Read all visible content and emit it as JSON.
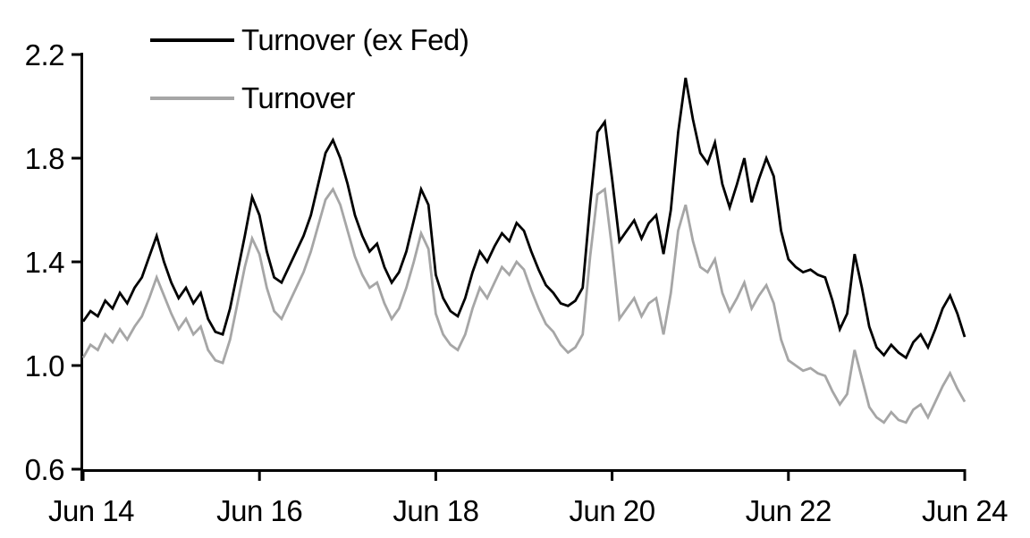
{
  "chart_data": {
    "type": "line",
    "title": "",
    "xlabel": "",
    "ylabel": "",
    "x_tick_labels": [
      "Jun 14",
      "Jun 16",
      "Jun 18",
      "Jun 20",
      "Jun 22",
      "Jun 24"
    ],
    "y_tick_labels": [
      "0.6",
      "1.0",
      "1.4",
      "1.8",
      "2.2"
    ],
    "y_tick_values": [
      0.6,
      1.0,
      1.4,
      1.8,
      2.2
    ],
    "ylim": [
      0.6,
      2.2
    ],
    "x_range": "monthly points from Jun 2014 to Jun 2024",
    "grid": false,
    "legend_position": "top-left-inside",
    "series": [
      {
        "name": "Turnover (ex Fed)",
        "color": "#000000",
        "values": [
          1.17,
          1.21,
          1.19,
          1.25,
          1.22,
          1.28,
          1.24,
          1.3,
          1.34,
          1.42,
          1.5,
          1.4,
          1.32,
          1.26,
          1.3,
          1.24,
          1.28,
          1.18,
          1.13,
          1.12,
          1.22,
          1.36,
          1.5,
          1.65,
          1.58,
          1.44,
          1.34,
          1.32,
          1.38,
          1.44,
          1.5,
          1.58,
          1.7,
          1.82,
          1.87,
          1.8,
          1.7,
          1.58,
          1.5,
          1.44,
          1.47,
          1.38,
          1.32,
          1.36,
          1.44,
          1.56,
          1.68,
          1.62,
          1.35,
          1.26,
          1.21,
          1.19,
          1.26,
          1.36,
          1.44,
          1.4,
          1.46,
          1.51,
          1.48,
          1.55,
          1.52,
          1.44,
          1.37,
          1.31,
          1.28,
          1.24,
          1.23,
          1.25,
          1.3,
          1.62,
          1.9,
          1.94,
          1.72,
          1.48,
          1.52,
          1.56,
          1.49,
          1.55,
          1.58,
          1.43,
          1.6,
          1.9,
          2.11,
          1.95,
          1.82,
          1.78,
          1.86,
          1.7,
          1.61,
          1.7,
          1.8,
          1.63,
          1.72,
          1.8,
          1.73,
          1.52,
          1.41,
          1.38,
          1.36,
          1.37,
          1.35,
          1.34,
          1.25,
          1.14,
          1.2,
          1.43,
          1.3,
          1.15,
          1.07,
          1.04,
          1.08,
          1.05,
          1.03,
          1.09,
          1.12,
          1.07,
          1.14,
          1.22,
          1.27,
          1.2,
          1.11
        ]
      },
      {
        "name": "Turnover",
        "color": "#a6a6a6",
        "values": [
          1.03,
          1.08,
          1.06,
          1.12,
          1.09,
          1.14,
          1.1,
          1.15,
          1.19,
          1.26,
          1.34,
          1.27,
          1.2,
          1.14,
          1.18,
          1.12,
          1.15,
          1.06,
          1.02,
          1.01,
          1.1,
          1.24,
          1.38,
          1.49,
          1.43,
          1.3,
          1.21,
          1.18,
          1.24,
          1.3,
          1.36,
          1.44,
          1.54,
          1.64,
          1.68,
          1.62,
          1.52,
          1.42,
          1.35,
          1.3,
          1.32,
          1.24,
          1.18,
          1.22,
          1.3,
          1.4,
          1.51,
          1.45,
          1.2,
          1.12,
          1.08,
          1.06,
          1.12,
          1.22,
          1.3,
          1.26,
          1.32,
          1.38,
          1.35,
          1.4,
          1.37,
          1.29,
          1.22,
          1.16,
          1.13,
          1.08,
          1.05,
          1.07,
          1.12,
          1.42,
          1.66,
          1.68,
          1.45,
          1.18,
          1.22,
          1.26,
          1.19,
          1.24,
          1.26,
          1.12,
          1.28,
          1.52,
          1.62,
          1.48,
          1.38,
          1.36,
          1.41,
          1.28,
          1.21,
          1.26,
          1.32,
          1.22,
          1.27,
          1.31,
          1.24,
          1.1,
          1.02,
          1.0,
          0.98,
          0.99,
          0.97,
          0.96,
          0.9,
          0.85,
          0.89,
          1.06,
          0.95,
          0.84,
          0.8,
          0.78,
          0.82,
          0.79,
          0.78,
          0.83,
          0.85,
          0.8,
          0.86,
          0.92,
          0.97,
          0.91,
          0.86
        ]
      }
    ]
  },
  "colors": {
    "axis": "#000000",
    "background": "#ffffff"
  }
}
